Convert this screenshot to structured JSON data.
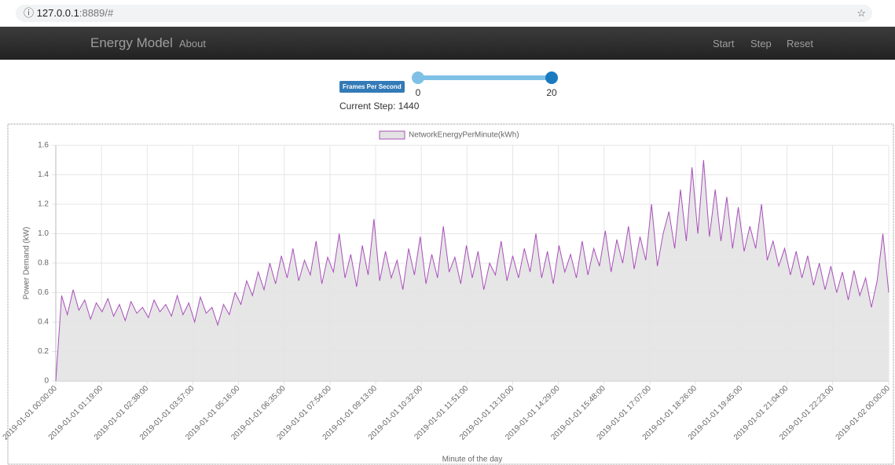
{
  "browser": {
    "url_host": "127.0.0.1",
    "url_rest": ":8889/#"
  },
  "navbar": {
    "brand": "Energy Model",
    "links": [
      "About"
    ],
    "actions": [
      "Start",
      "Step",
      "Reset"
    ]
  },
  "controls": {
    "badge": "Frames Per Second",
    "min": 0,
    "max": 20,
    "low": 0,
    "high": 20,
    "current_step": "Current Step: 1440"
  },
  "chart_data": {
    "type": "line",
    "x_label": "Minute of the day",
    "y_label": "Power Demand (kW)",
    "xlim": [
      0,
      1440
    ],
    "ylim": [
      0,
      1.6
    ],
    "xticks": [
      {
        "value": 0,
        "label": "2019-01-01 00:00:00"
      },
      {
        "value": 79,
        "label": "2019-01-01 01:19:00"
      },
      {
        "value": 158,
        "label": "2019-01-01 02:38:00"
      },
      {
        "value": 237,
        "label": "2019-01-01 03:57:00"
      },
      {
        "value": 316,
        "label": "2019-01-01 05:16:00"
      },
      {
        "value": 395,
        "label": "2019-01-01 06:35:00"
      },
      {
        "value": 474,
        "label": "2019-01-01 07:54:00"
      },
      {
        "value": 553,
        "label": "2019-01-01 09:13:00"
      },
      {
        "value": 632,
        "label": "2019-01-01 10:32:00"
      },
      {
        "value": 711,
        "label": "2019-01-01 11:51:00"
      },
      {
        "value": 790,
        "label": "2019-01-01 13:10:00"
      },
      {
        "value": 869,
        "label": "2019-01-01 14:29:00"
      },
      {
        "value": 948,
        "label": "2019-01-01 15:48:00"
      },
      {
        "value": 1027,
        "label": "2019-01-01 17:07:00"
      },
      {
        "value": 1106,
        "label": "2019-01-01 18:26:00"
      },
      {
        "value": 1185,
        "label": "2019-01-01 19:45:00"
      },
      {
        "value": 1264,
        "label": "2019-01-01 21:04:00"
      },
      {
        "value": 1343,
        "label": "2019-01-01 22:23:00"
      },
      {
        "value": 1440,
        "label": "2019-01-02 00:00:00"
      }
    ],
    "yticks": [
      0,
      0.2,
      0.4,
      0.6,
      0.8,
      {
        "value": 1,
        "label": "1.0"
      },
      1.2,
      1.4,
      1.6
    ],
    "grid": true,
    "x": [
      0,
      10,
      20,
      30,
      40,
      50,
      60,
      70,
      80,
      90,
      100,
      110,
      120,
      130,
      140,
      150,
      160,
      170,
      180,
      190,
      200,
      210,
      220,
      230,
      240,
      250,
      260,
      270,
      280,
      290,
      300,
      310,
      320,
      330,
      340,
      350,
      360,
      370,
      380,
      390,
      400,
      410,
      420,
      430,
      440,
      450,
      460,
      470,
      480,
      490,
      500,
      510,
      520,
      530,
      540,
      550,
      560,
      570,
      580,
      590,
      600,
      610,
      620,
      630,
      640,
      650,
      660,
      670,
      680,
      690,
      700,
      710,
      720,
      730,
      740,
      750,
      760,
      770,
      780,
      790,
      800,
      810,
      820,
      830,
      840,
      850,
      860,
      870,
      880,
      890,
      900,
      910,
      920,
      930,
      940,
      950,
      960,
      970,
      980,
      990,
      1000,
      1010,
      1020,
      1030,
      1040,
      1050,
      1060,
      1070,
      1080,
      1090,
      1100,
      1110,
      1120,
      1130,
      1140,
      1150,
      1160,
      1170,
      1180,
      1190,
      1200,
      1210,
      1220,
      1230,
      1240,
      1250,
      1260,
      1270,
      1280,
      1290,
      1300,
      1310,
      1320,
      1330,
      1340,
      1350,
      1360,
      1370,
      1380,
      1390,
      1400,
      1410,
      1420,
      1430,
      1440
    ],
    "series": [
      {
        "name": "NetworkEnergyPerMinute(kWh)",
        "color": "#a94fbb",
        "fill": "#e3e3e3",
        "values": [
          0,
          0.58,
          0.45,
          0.62,
          0.48,
          0.55,
          0.42,
          0.53,
          0.47,
          0.56,
          0.44,
          0.52,
          0.41,
          0.54,
          0.46,
          0.5,
          0.43,
          0.55,
          0.47,
          0.52,
          0.44,
          0.58,
          0.45,
          0.53,
          0.4,
          0.57,
          0.46,
          0.5,
          0.38,
          0.52,
          0.45,
          0.6,
          0.52,
          0.68,
          0.58,
          0.74,
          0.62,
          0.8,
          0.66,
          0.85,
          0.7,
          0.9,
          0.68,
          0.82,
          0.72,
          0.95,
          0.66,
          0.84,
          0.74,
          1.0,
          0.7,
          0.86,
          0.64,
          0.92,
          0.72,
          1.1,
          0.68,
          0.88,
          0.7,
          0.82,
          0.62,
          0.9,
          0.72,
          0.98,
          0.66,
          0.86,
          0.7,
          1.05,
          0.74,
          0.84,
          0.66,
          0.92,
          0.7,
          0.88,
          0.62,
          0.8,
          0.72,
          0.95,
          0.68,
          0.85,
          0.7,
          0.9,
          0.74,
          1.0,
          0.7,
          0.88,
          0.66,
          0.92,
          0.74,
          0.86,
          0.7,
          0.95,
          0.72,
          0.9,
          0.78,
          1.02,
          0.74,
          0.96,
          0.8,
          1.05,
          0.76,
          0.98,
          0.82,
          1.2,
          0.78,
          1.0,
          1.15,
          0.9,
          1.3,
          0.95,
          1.45,
          1.0,
          1.5,
          0.98,
          1.3,
          0.95,
          1.25,
          0.9,
          1.18,
          0.88,
          1.05,
          0.9,
          1.2,
          0.82,
          0.95,
          0.78,
          0.9,
          0.72,
          0.88,
          0.7,
          0.85,
          0.65,
          0.8,
          0.62,
          0.78,
          0.6,
          0.74,
          0.55,
          0.75,
          0.58,
          0.7,
          0.5,
          0.68,
          1.0,
          0.6
        ]
      }
    ]
  }
}
